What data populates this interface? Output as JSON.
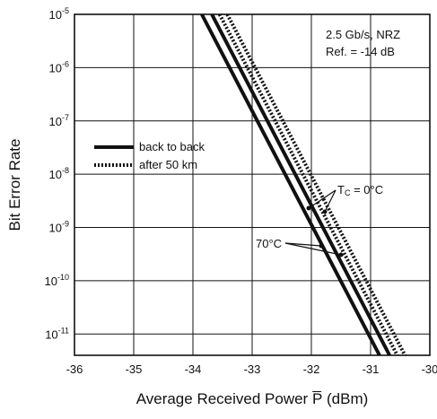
{
  "chart_data": {
    "type": "line",
    "xlabel": "Average Received Power P̅ (dBm)",
    "ylabel": "Bit Error Rate",
    "xlim": [
      -36,
      -30
    ],
    "ylim_exponent": [
      -11.4,
      -5
    ],
    "yscale": "log",
    "grid": true,
    "x_ticks": [
      "-36",
      "-35",
      "-34",
      "-33",
      "-32",
      "-31",
      "-30"
    ],
    "y_ticks": [
      {
        "base": "10",
        "exp": "-5",
        "value": -5
      },
      {
        "base": "10",
        "exp": "-6",
        "value": -6
      },
      {
        "base": "10",
        "exp": "-7",
        "value": -7
      },
      {
        "base": "10",
        "exp": "-8",
        "value": -8
      },
      {
        "base": "10",
        "exp": "-9",
        "value": -9
      },
      {
        "base": "10",
        "exp": "-10",
        "value": -10
      },
      {
        "base": "10",
        "exp": "-11",
        "value": -11
      }
    ],
    "info_box": [
      "2.5 Gb/s, NRZ",
      "Ref. = -14 dB"
    ],
    "legend": {
      "placement": "middle-left",
      "entries": [
        {
          "label": "back to back",
          "style": "solid"
        },
        {
          "label": "after 50 km",
          "style": "dotted"
        }
      ]
    },
    "annotations": [
      {
        "text": "Tc = 0°C",
        "prefix": "T",
        "sub": "C",
        "suffix": " = 0°C"
      },
      {
        "text": "70°C"
      }
    ],
    "series": [
      {
        "style": "solid",
        "points": [
          [
            -33.85,
            -5
          ],
          [
            -30.85,
            -11.4
          ]
        ]
      },
      {
        "style": "solid",
        "points": [
          [
            -33.68,
            -5
          ],
          [
            -30.68,
            -11.4
          ]
        ]
      },
      {
        "style": "dotted",
        "points": [
          [
            -33.55,
            -5
          ],
          [
            -30.55,
            -11.4
          ]
        ]
      },
      {
        "style": "dotted",
        "points": [
          [
            -33.42,
            -5
          ],
          [
            -30.42,
            -11.4
          ]
        ]
      }
    ]
  }
}
